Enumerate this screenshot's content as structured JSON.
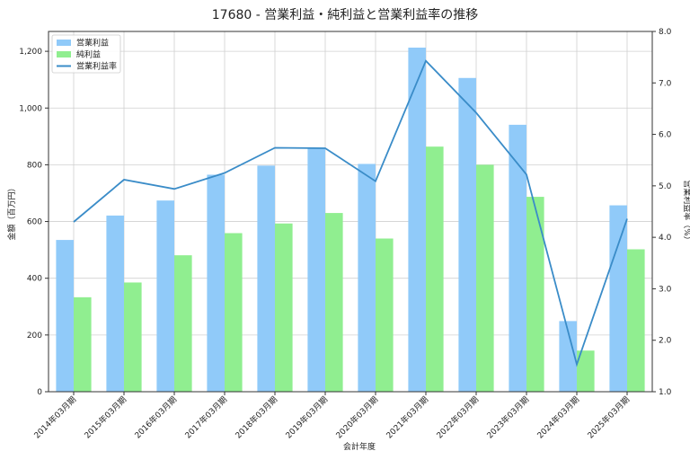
{
  "chart_data": {
    "type": "bar",
    "title": "17680 - 営業利益・純利益と営業利益率の推移",
    "xlabel": "会計年度",
    "ylabel": "金額（百万円）",
    "y2label": "営業利益率（%）",
    "categories": [
      "2014年03月期",
      "2015年03月期",
      "2016年03月期",
      "2017年03月期",
      "2018年03月期",
      "2019年03月期",
      "2020年03月期",
      "2021年03月期",
      "2022年03月期",
      "2023年03月期",
      "2024年03月期",
      "2025年03月期"
    ],
    "series": [
      {
        "name": "営業利益",
        "kind": "bar",
        "axis": "left",
        "color": "#90CAF9",
        "values": [
          535,
          621,
          674,
          765,
          797,
          860,
          803,
          1213,
          1106,
          941,
          249,
          657
        ]
      },
      {
        "name": "純利益",
        "kind": "bar",
        "axis": "left",
        "color": "#90EE90",
        "values": [
          333,
          385,
          481,
          559,
          593,
          630,
          540,
          864,
          800,
          687,
          145,
          502
        ]
      },
      {
        "name": "営業利益率",
        "kind": "line",
        "axis": "right",
        "color": "#3A8CC8",
        "values": [
          4.3,
          5.12,
          4.94,
          5.25,
          5.74,
          5.73,
          5.09,
          7.43,
          6.42,
          5.22,
          1.53,
          4.36
        ]
      }
    ],
    "ylim": [
      0,
      1270
    ],
    "y_ticks": [
      0,
      200,
      400,
      600,
      800,
      1000,
      1200
    ],
    "y_tick_labels": [
      "0",
      "200",
      "400",
      "600",
      "800",
      "1,000",
      "1,200"
    ],
    "y2lim": [
      1.0,
      8.0
    ],
    "y2_ticks": [
      1.0,
      2.0,
      3.0,
      4.0,
      5.0,
      6.0,
      7.0,
      8.0
    ],
    "y2_tick_labels": [
      "1.0",
      "2.0",
      "3.0",
      "4.0",
      "5.0",
      "6.0",
      "7.0",
      "8.0"
    ],
    "grid": true,
    "legend_position": "top-left"
  }
}
